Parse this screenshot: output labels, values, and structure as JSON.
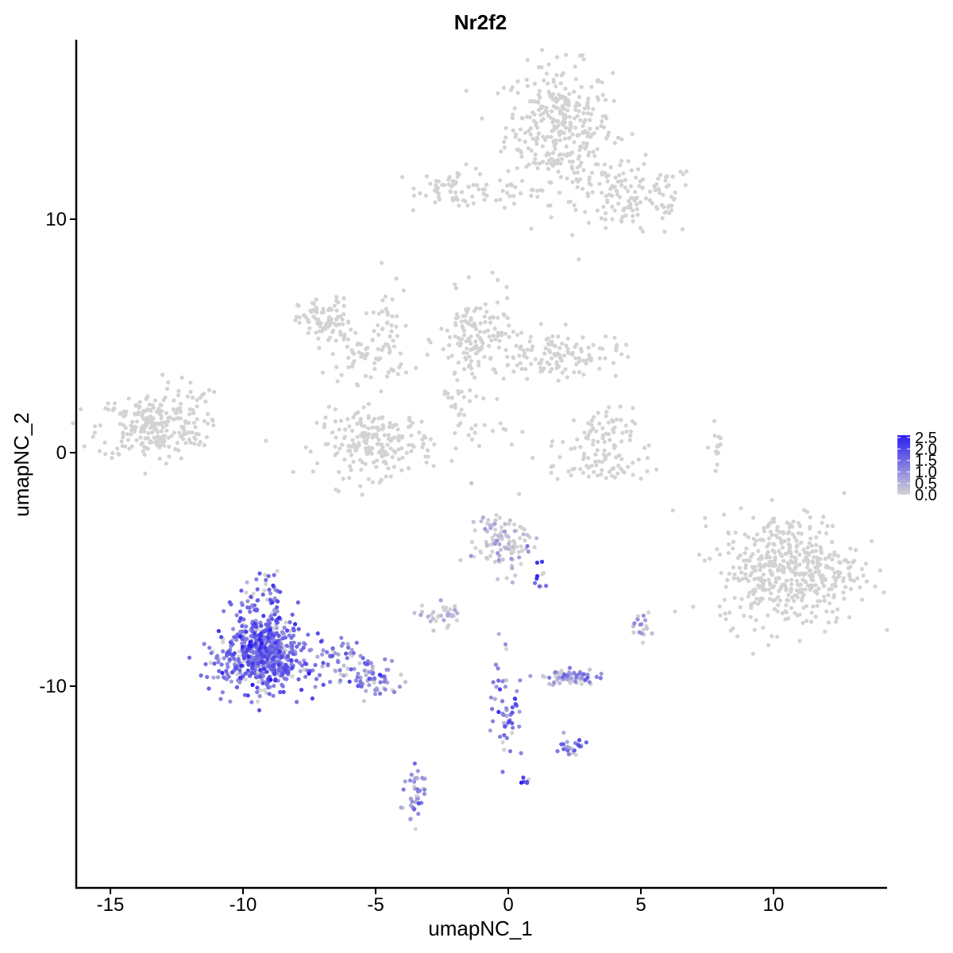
{
  "chart_data": {
    "type": "scatter",
    "title": "Nr2f2",
    "xlabel": "umapNC_1",
    "ylabel": "umapNC_2",
    "xlim": [
      -16.5,
      14.5
    ],
    "ylim": [
      -18.5,
      17.5
    ],
    "x_ticks": [
      -15,
      -10,
      -5,
      0,
      5,
      10
    ],
    "x_tick_labels": [
      "-15",
      "-10",
      "-5",
      "0",
      "5",
      "10"
    ],
    "y_ticks": [
      -10,
      0,
      10
    ],
    "y_tick_labels": [
      "-10",
      "0",
      "10"
    ],
    "grid": false,
    "color_scale": {
      "name": "expression",
      "low_color": "#d3d3d3",
      "high_color": "#2b1ef0",
      "min": 0,
      "max": 2.6,
      "ticks": [
        0.0,
        0.5,
        1.0,
        1.5,
        2.0,
        2.5
      ],
      "tick_labels": [
        "0.0",
        "0.5",
        "1.0",
        "1.5",
        "2.0",
        "2.5"
      ],
      "legend_position": "right"
    },
    "clusters": [
      {
        "cx": 1.9,
        "cy": 14.0,
        "sx": 1.0,
        "sy": 1.3,
        "n": 320,
        "expr": 0.0
      },
      {
        "cx": 4.8,
        "cy": 10.8,
        "sx": 1.2,
        "sy": 0.8,
        "n": 120,
        "expr": 0.0
      },
      {
        "cx": -2.0,
        "cy": 11.4,
        "sx": 0.7,
        "sy": 0.4,
        "n": 55,
        "expr": 0.0
      },
      {
        "cx": -0.2,
        "cy": 11.1,
        "sx": 1.0,
        "sy": 0.25,
        "n": 25,
        "expr": 0.0
      },
      {
        "cx": 3.0,
        "cy": 11.5,
        "sx": 0.6,
        "sy": 0.8,
        "n": 30,
        "expr": 0.0
      },
      {
        "cx": -13.5,
        "cy": 1.1,
        "sx": 1.0,
        "sy": 0.7,
        "n": 220,
        "expr": 0.0
      },
      {
        "cx": -12.2,
        "cy": 1.8,
        "sx": 0.5,
        "sy": 0.8,
        "n": 35,
        "expr": 0.0
      },
      {
        "cx": -6.9,
        "cy": 5.6,
        "sx": 0.5,
        "sy": 0.5,
        "n": 90,
        "expr": 0.0
      },
      {
        "cx": -5.2,
        "cy": 4.2,
        "sx": 0.8,
        "sy": 0.6,
        "n": 60,
        "expr": 0.0
      },
      {
        "cx": -4.6,
        "cy": 5.5,
        "sx": 0.25,
        "sy": 1.2,
        "n": 30,
        "expr": 0.0
      },
      {
        "cx": -5.0,
        "cy": 0.4,
        "sx": 1.1,
        "sy": 0.7,
        "n": 200,
        "expr": 0.0
      },
      {
        "cx": -1.2,
        "cy": 4.8,
        "sx": 0.7,
        "sy": 1.0,
        "n": 140,
        "expr": 0.0
      },
      {
        "cx": 1.8,
        "cy": 4.2,
        "sx": 1.2,
        "sy": 0.5,
        "n": 120,
        "expr": 0.0
      },
      {
        "cx": -1.9,
        "cy": 2.5,
        "sx": 0.3,
        "sy": 0.6,
        "n": 20,
        "expr": 0.0
      },
      {
        "cx": -1.2,
        "cy": 1.1,
        "sx": 0.8,
        "sy": 0.35,
        "n": 18,
        "expr": 0.0
      },
      {
        "cx": 3.3,
        "cy": 0.5,
        "sx": 0.7,
        "sy": 0.7,
        "n": 75,
        "expr": 0.0
      },
      {
        "cx": 3.5,
        "cy": -0.7,
        "sx": 1.0,
        "sy": 0.3,
        "n": 45,
        "expr": 0.0
      },
      {
        "cx": 7.9,
        "cy": 0.3,
        "sx": 0.15,
        "sy": 0.5,
        "n": 14,
        "expr": 0.0
      },
      {
        "cx": 10.6,
        "cy": -5.0,
        "sx": 1.3,
        "sy": 1.2,
        "n": 480,
        "expr": 0.0
      },
      {
        "cx": -0.2,
        "cy": -3.8,
        "sx": 0.6,
        "sy": 0.7,
        "n": 110,
        "expr": 0.05
      },
      {
        "cx": -2.5,
        "cy": -6.9,
        "sx": 0.4,
        "sy": 0.3,
        "n": 35,
        "expr": 0.05
      },
      {
        "cx": -9.2,
        "cy": -7.8,
        "sx": 0.55,
        "sy": 1.1,
        "n": 300,
        "expr": 1.45
      },
      {
        "cx": -9.3,
        "cy": -9.0,
        "sx": 0.9,
        "sy": 0.6,
        "n": 360,
        "expr": 1.4
      },
      {
        "cx": -6.5,
        "cy": -8.8,
        "sx": 0.6,
        "sy": 0.35,
        "n": 50,
        "expr": 1.1
      },
      {
        "cx": -5.0,
        "cy": -9.7,
        "sx": 0.6,
        "sy": 0.4,
        "n": 60,
        "expr": 1.05
      },
      {
        "cx": -3.5,
        "cy": -14.8,
        "sx": 0.2,
        "sy": 0.6,
        "n": 40,
        "expr": 0.85
      },
      {
        "cx": -0.1,
        "cy": -10.6,
        "sx": 0.3,
        "sy": 1.2,
        "n": 55,
        "expr": 1.3
      },
      {
        "cx": 2.3,
        "cy": -9.6,
        "sx": 0.5,
        "sy": 0.2,
        "n": 65,
        "expr": 0.7
      },
      {
        "cx": 2.4,
        "cy": -12.6,
        "sx": 0.25,
        "sy": 0.2,
        "n": 22,
        "expr": 1.1
      },
      {
        "cx": 5.0,
        "cy": -7.5,
        "sx": 0.2,
        "sy": 0.3,
        "n": 18,
        "expr": 0.6
      },
      {
        "cx": 0.7,
        "cy": -14.1,
        "sx": 0.1,
        "sy": 0.1,
        "n": 6,
        "expr": 2.2
      },
      {
        "cx": 1.2,
        "cy": -5.4,
        "sx": 0.12,
        "sy": 0.3,
        "n": 10,
        "expr": 1.6
      }
    ]
  }
}
